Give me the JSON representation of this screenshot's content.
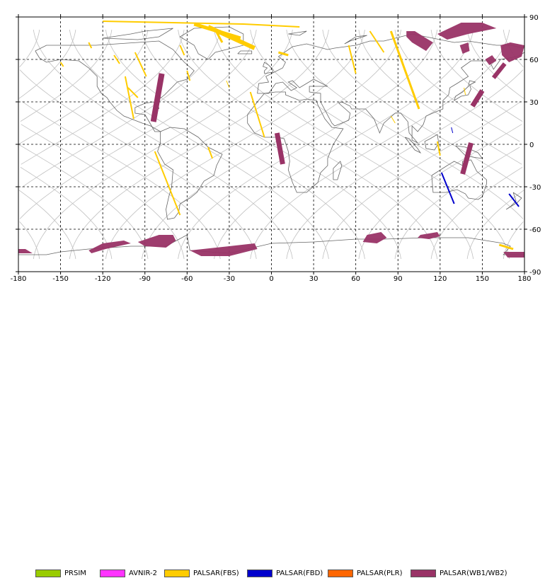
{
  "chart_data": {
    "type": "map",
    "projection": "equirectangular",
    "xlim": [
      -180,
      180
    ],
    "ylim": [
      -90,
      90
    ],
    "x_ticks": [
      -180,
      -150,
      -120,
      -90,
      -60,
      -30,
      0,
      30,
      60,
      90,
      120,
      150,
      180
    ],
    "y_ticks": [
      90,
      60,
      30,
      0,
      -30,
      -60,
      -90
    ],
    "x_tick_labels": [
      "-180",
      "-150",
      "-120",
      "-90",
      "-60",
      "-30",
      "0",
      "30",
      "60",
      "90",
      "120",
      "150",
      "180"
    ],
    "y_tick_labels": [
      "90",
      "60",
      "30",
      "0",
      "-30",
      "-60",
      "-90"
    ],
    "grid": true,
    "legend": [
      {
        "name": "PRSIM",
        "color": "#99cc00"
      },
      {
        "name": "AVNIR-2",
        "color": "#ff33ff"
      },
      {
        "name": "PALSAR(FBS)",
        "color": "#ffcc00"
      },
      {
        "name": "PALSAR(FBD)",
        "color": "#0000cc"
      },
      {
        "name": "PALSAR(PLR)",
        "color": "#ff6600"
      },
      {
        "name": "PALSAR(WB1/WB2)",
        "color": "#993366"
      }
    ],
    "strips": [
      {
        "sensor": "PALSAR(FBS)",
        "points": [
          [
            -120,
            87
          ],
          [
            -20,
            85
          ],
          [
            20,
            83
          ]
        ],
        "width": 2
      },
      {
        "sensor": "PALSAR(FBS)",
        "points": [
          [
            -55,
            85
          ],
          [
            -22,
            75
          ]
        ],
        "width": 5
      },
      {
        "sensor": "PALSAR(FBS)",
        "points": [
          [
            -45,
            83
          ],
          [
            -12,
            68
          ]
        ],
        "width": 6
      },
      {
        "sensor": "PALSAR(FBS)",
        "points": [
          [
            -40,
            81
          ],
          [
            -35,
            72
          ]
        ],
        "width": 3
      },
      {
        "sensor": "PALSAR(FBS)",
        "points": [
          [
            5,
            65
          ],
          [
            12,
            63
          ]
        ],
        "width": 3
      },
      {
        "sensor": "PALSAR(FBS)",
        "points": [
          [
            -150,
            58
          ],
          [
            -148,
            55
          ]
        ],
        "width": 2
      },
      {
        "sensor": "PALSAR(FBS)",
        "points": [
          [
            -130,
            72
          ],
          [
            -128,
            68
          ]
        ],
        "width": 2
      },
      {
        "sensor": "PALSAR(FBS)",
        "points": [
          [
            -112,
            63
          ],
          [
            -108,
            57
          ]
        ],
        "width": 2
      },
      {
        "sensor": "PALSAR(FBS)",
        "points": [
          [
            -97,
            65
          ],
          [
            -89,
            48
          ]
        ],
        "width": 2
      },
      {
        "sensor": "PALSAR(FBS)",
        "points": [
          [
            -104,
            48
          ],
          [
            -98,
            18
          ]
        ],
        "width": 2
      },
      {
        "sensor": "PALSAR(FBS)",
        "points": [
          [
            -102,
            40
          ],
          [
            -95,
            33
          ]
        ],
        "width": 2
      },
      {
        "sensor": "PALSAR(FBS)",
        "points": [
          [
            -65,
            70
          ],
          [
            -62,
            63
          ]
        ],
        "width": 2
      },
      {
        "sensor": "PALSAR(FBS)",
        "points": [
          [
            -60,
            52
          ],
          [
            -58,
            45
          ]
        ],
        "width": 2
      },
      {
        "sensor": "PALSAR(FBS)",
        "points": [
          [
            -83,
            -5
          ],
          [
            -65,
            -50
          ]
        ],
        "width": 2
      },
      {
        "sensor": "PALSAR(FBS)",
        "points": [
          [
            -45,
            -2
          ],
          [
            -42,
            -10
          ]
        ],
        "width": 2
      },
      {
        "sensor": "PALSAR(FBS)",
        "points": [
          [
            -32,
            45
          ],
          [
            -30,
            40
          ]
        ],
        "width": 1
      },
      {
        "sensor": "PALSAR(FBS)",
        "points": [
          [
            -15,
            37
          ],
          [
            -5,
            5
          ]
        ],
        "width": 2
      },
      {
        "sensor": "PALSAR(FBS)",
        "points": [
          [
            55,
            70
          ],
          [
            60,
            50
          ]
        ],
        "width": 2
      },
      {
        "sensor": "PALSAR(FBS)",
        "points": [
          [
            70,
            80
          ],
          [
            80,
            65
          ]
        ],
        "width": 2
      },
      {
        "sensor": "PALSAR(FBS)",
        "points": [
          [
            85,
            80
          ],
          [
            105,
            25
          ]
        ],
        "width": 3
      },
      {
        "sensor": "PALSAR(FBS)",
        "points": [
          [
            85,
            20
          ],
          [
            88,
            15
          ]
        ],
        "width": 1
      },
      {
        "sensor": "PALSAR(FBS)",
        "points": [
          [
            118,
            2
          ],
          [
            120,
            -8
          ]
        ],
        "width": 2
      },
      {
        "sensor": "PALSAR(FBS)",
        "points": [
          [
            137,
            40
          ],
          [
            138,
            35
          ]
        ],
        "width": 1
      },
      {
        "sensor": "PALSAR(FBS)",
        "points": [
          [
            162,
            -71
          ],
          [
            172,
            -74
          ]
        ],
        "width": 3
      },
      {
        "sensor": "PALSAR(FBD)",
        "points": [
          [
            121,
            -20
          ],
          [
            130,
            -42
          ]
        ],
        "width": 2
      },
      {
        "sensor": "PALSAR(FBD)",
        "points": [
          [
            169,
            -35
          ],
          [
            176,
            -44
          ]
        ],
        "width": 2
      },
      {
        "sensor": "PALSAR(FBD)",
        "points": [
          [
            128,
            12
          ],
          [
            129,
            8
          ]
        ],
        "width": 1
      },
      {
        "sensor": "PALSAR(WB1/WB2)",
        "points": [
          [
            -78,
            50
          ],
          [
            -84,
            16
          ]
        ],
        "width": 8
      },
      {
        "sensor": "PALSAR(WB1/WB2)",
        "points": [
          [
            4,
            8
          ],
          [
            8,
            -14
          ]
        ],
        "width": 7
      },
      {
        "sensor": "PALSAR(WB1/WB2)",
        "points": [
          [
            142,
            1
          ],
          [
            136,
            -21
          ]
        ],
        "width": 7
      },
      {
        "sensor": "PALSAR(WB1/WB2)",
        "points": [
          [
            150,
            38
          ],
          [
            143,
            27
          ]
        ],
        "width": 7
      },
      {
        "sensor": "PALSAR(WB1/WB2)",
        "points": [
          [
            166,
            57
          ],
          [
            158,
            47
          ]
        ],
        "width": 6
      }
    ],
    "polygons": [
      {
        "sensor": "PALSAR(WB1/WB2)",
        "points": [
          [
            96,
            80
          ],
          [
            102,
            80
          ],
          [
            110,
            75
          ],
          [
            115,
            72
          ],
          [
            110,
            66
          ],
          [
            100,
            72
          ],
          [
            96,
            76
          ]
        ]
      },
      {
        "sensor": "PALSAR(WB1/WB2)",
        "points": [
          [
            118,
            78
          ],
          [
            135,
            86
          ],
          [
            150,
            86
          ],
          [
            160,
            82
          ],
          [
            140,
            78
          ],
          [
            125,
            74
          ]
        ]
      },
      {
        "sensor": "PALSAR(WB1/WB2)",
        "points": [
          [
            163,
            70
          ],
          [
            170,
            72
          ],
          [
            180,
            70
          ],
          [
            178,
            62
          ],
          [
            169,
            58
          ],
          [
            164,
            63
          ]
        ]
      },
      {
        "sensor": "PALSAR(WB1/WB2)",
        "points": [
          [
            -180,
            -74
          ],
          [
            -175,
            -74
          ],
          [
            -170,
            -77
          ],
          [
            -180,
            -77
          ]
        ]
      },
      {
        "sensor": "PALSAR(WB1/WB2)",
        "points": [
          [
            -130,
            -75
          ],
          [
            -120,
            -70
          ],
          [
            -105,
            -68
          ],
          [
            -100,
            -70
          ],
          [
            -118,
            -74
          ],
          [
            -128,
            -77
          ]
        ]
      },
      {
        "sensor": "PALSAR(WB1/WB2)",
        "points": [
          [
            -95,
            -69
          ],
          [
            -80,
            -64
          ],
          [
            -70,
            -64
          ],
          [
            -68,
            -68
          ],
          [
            -75,
            -73
          ],
          [
            -90,
            -72
          ]
        ]
      },
      {
        "sensor": "PALSAR(WB1/WB2)",
        "points": [
          [
            -58,
            -75
          ],
          [
            -30,
            -72
          ],
          [
            -12,
            -70
          ],
          [
            -10,
            -74
          ],
          [
            -30,
            -79
          ],
          [
            -50,
            -79
          ]
        ]
      },
      {
        "sensor": "PALSAR(WB1/WB2)",
        "points": [
          [
            68,
            -64
          ],
          [
            78,
            -62
          ],
          [
            82,
            -66
          ],
          [
            75,
            -70
          ],
          [
            65,
            -69
          ]
        ]
      },
      {
        "sensor": "PALSAR(WB1/WB2)",
        "points": [
          [
            106,
            -64
          ],
          [
            118,
            -62
          ],
          [
            120,
            -65
          ],
          [
            112,
            -67
          ],
          [
            104,
            -66
          ]
        ]
      },
      {
        "sensor": "PALSAR(WB1/WB2)",
        "points": [
          [
            165,
            -76
          ],
          [
            180,
            -76
          ],
          [
            180,
            -80
          ],
          [
            168,
            -80
          ]
        ]
      },
      {
        "sensor": "PALSAR(WB1/WB2)",
        "points": [
          [
            134,
            70
          ],
          [
            140,
            72
          ],
          [
            141,
            66
          ],
          [
            136,
            64
          ]
        ]
      },
      {
        "sensor": "PALSAR(WB1/WB2)",
        "points": [
          [
            152,
            60
          ],
          [
            157,
            63
          ],
          [
            160,
            59
          ],
          [
            155,
            56
          ]
        ]
      }
    ],
    "orbit_tracks": {
      "count": 14,
      "color": "#c0c0c0"
    },
    "coastline_color": "#666666"
  }
}
